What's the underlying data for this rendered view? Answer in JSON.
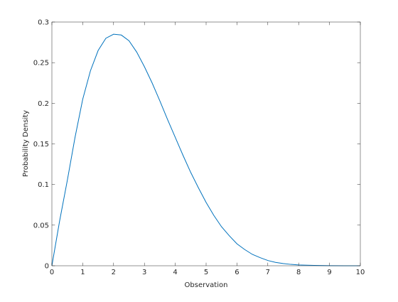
{
  "chart_data": {
    "type": "line",
    "xlabel": "Observation",
    "ylabel": "Probability Density",
    "xlim": [
      0,
      10
    ],
    "ylim": [
      0,
      0.3
    ],
    "grid": false,
    "box": true,
    "xticks": [
      "0",
      "1",
      "2",
      "3",
      "4",
      "5",
      "6",
      "7",
      "8",
      "9",
      "10"
    ],
    "yticks": [
      "0",
      "0.05",
      "0.1",
      "0.15",
      "0.2",
      "0.25",
      "0.3"
    ],
    "series": [
      {
        "color": "#0072bd",
        "x": [
          0,
          0.25,
          0.5,
          0.75,
          1,
          1.25,
          1.5,
          1.75,
          2,
          2.25,
          2.5,
          2.75,
          3,
          3.25,
          3.5,
          3.75,
          4,
          4.25,
          4.5,
          4.75,
          5,
          5.25,
          5.5,
          5.75,
          6,
          6.25,
          6.5,
          6.75,
          7,
          7.25,
          7.5,
          7.75,
          8,
          8.5,
          9,
          9.5,
          10
        ],
        "y": [
          0,
          0.055,
          0.105,
          0.158,
          0.205,
          0.24,
          0.265,
          0.28,
          0.285,
          0.284,
          0.277,
          0.263,
          0.245,
          0.225,
          0.203,
          0.18,
          0.158,
          0.136,
          0.115,
          0.096,
          0.078,
          0.062,
          0.048,
          0.037,
          0.027,
          0.02,
          0.014,
          0.01,
          0.0065,
          0.0042,
          0.0027,
          0.0017,
          0.001,
          0.0004,
          0.0001,
          3e-05,
          0
        ]
      }
    ]
  }
}
